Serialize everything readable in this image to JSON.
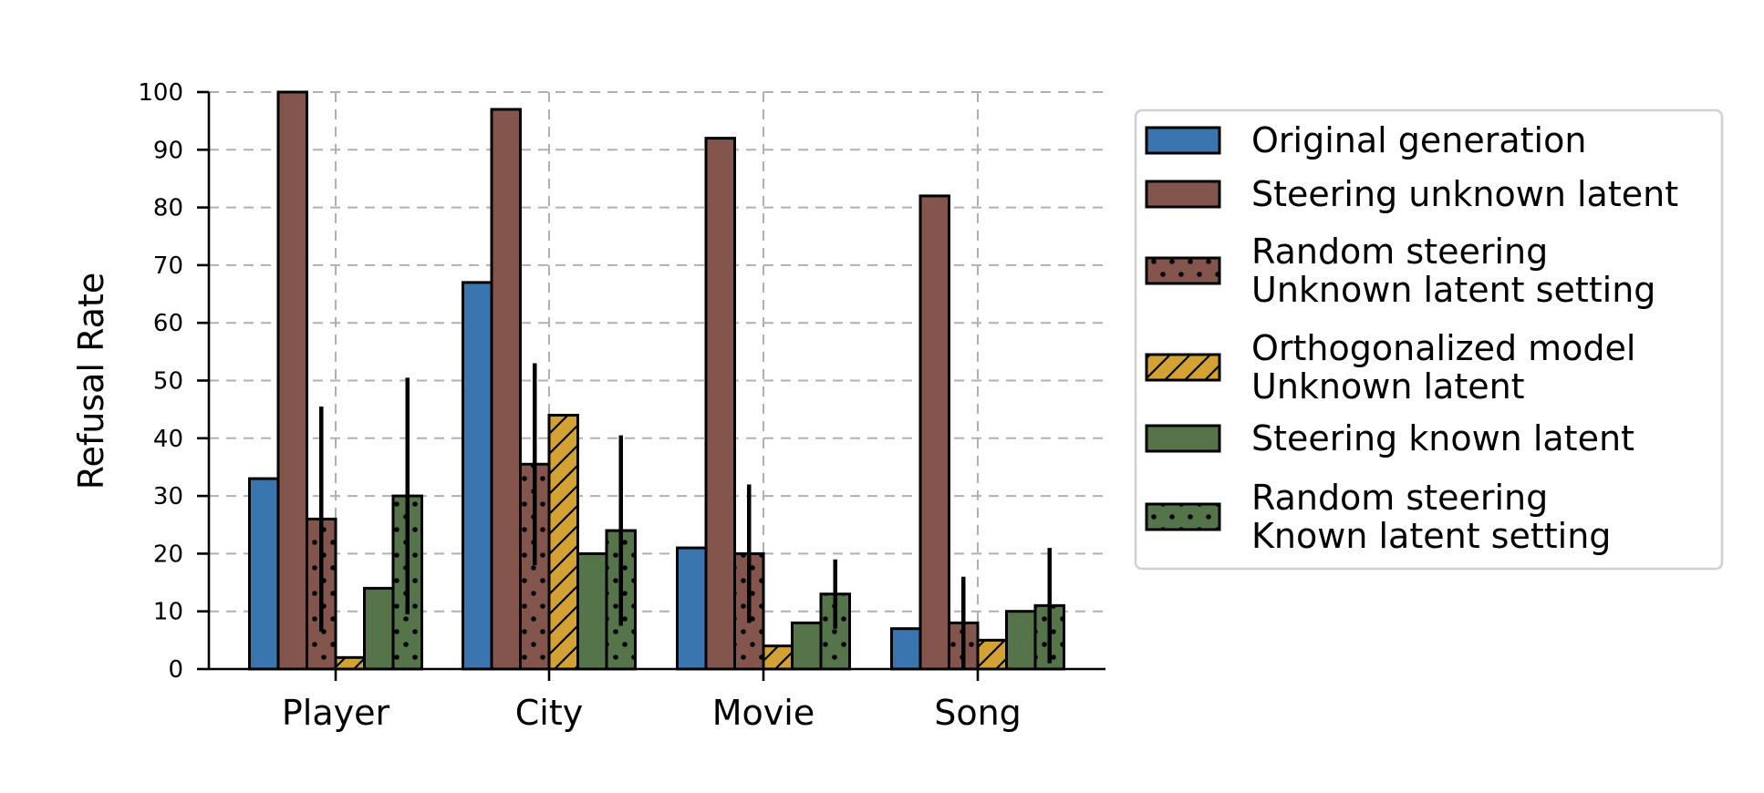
{
  "chart_data": {
    "type": "bar",
    "title": "",
    "xlabel": "",
    "ylabel": "Refusal Rate",
    "ylim": [
      0,
      100
    ],
    "yticks": [
      0,
      10,
      20,
      30,
      40,
      50,
      60,
      70,
      80,
      90,
      100
    ],
    "grid": true,
    "grid_style": "dashed",
    "legend_position": "right",
    "categories": [
      "Player",
      "City",
      "Movie",
      "Song"
    ],
    "series": [
      {
        "name": "Original generation",
        "legend_lines": [
          "Original generation"
        ],
        "color": "#3a75b0",
        "hatch": "none",
        "values": [
          33,
          67,
          21,
          7
        ],
        "errors": null
      },
      {
        "name": "Steering unknown latent",
        "legend_lines": [
          "Steering unknown latent"
        ],
        "color": "#84554c",
        "hatch": "none",
        "values": [
          100,
          97,
          92,
          82
        ],
        "errors": null
      },
      {
        "name": "Random steering Unknown latent setting",
        "legend_lines": [
          "Random steering",
          "Unknown latent setting"
        ],
        "color": "#84554c",
        "hatch": "dots",
        "values": [
          26,
          35.5,
          20,
          8
        ],
        "errors": [
          19.5,
          17.5,
          12,
          8
        ]
      },
      {
        "name": "Orthogonalized model Unknown latent",
        "legend_lines": [
          "Orthogonalized model",
          "Unknown latent"
        ],
        "color": "#d4a233",
        "hatch": "diagonal",
        "values": [
          2,
          44,
          4,
          5
        ],
        "errors": null
      },
      {
        "name": "Steering known latent",
        "legend_lines": [
          "Steering known latent"
        ],
        "color": "#56744a",
        "hatch": "none",
        "values": [
          14,
          20,
          8,
          10
        ],
        "errors": null
      },
      {
        "name": "Random steering Known latent setting",
        "legend_lines": [
          "Random steering",
          "Known latent setting"
        ],
        "color": "#56744a",
        "hatch": "dots",
        "values": [
          30,
          24,
          13,
          11
        ],
        "errors": [
          20.5,
          16.5,
          6,
          10
        ]
      }
    ]
  }
}
